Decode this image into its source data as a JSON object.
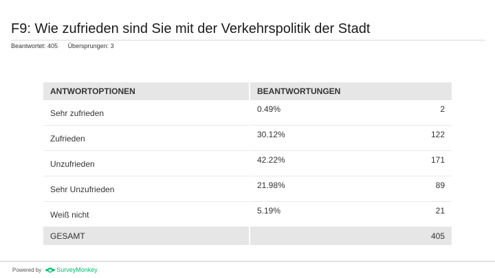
{
  "question": {
    "title": "F9: Wie zufrieden sind Sie mit der Verkehrspolitik der Stadt",
    "answered": "Beantwortet: 405",
    "skipped": "Übersprungen: 3"
  },
  "table": {
    "headers": {
      "options": "ANTWORTOPTIONEN",
      "responses": "BEANTWORTUNGEN"
    },
    "rows": [
      {
        "option": "Sehr zufrieden",
        "percent": "0.49%",
        "count": "2"
      },
      {
        "option": "Zufrieden",
        "percent": "30.12%",
        "count": "122"
      },
      {
        "option": "Unzufrieden",
        "percent": "42.22%",
        "count": "171"
      },
      {
        "option": "Sehr Unzufrieden",
        "percent": "21.98%",
        "count": "89"
      },
      {
        "option": "Weiß nicht",
        "percent": "5.19%",
        "count": "21"
      }
    ],
    "total": {
      "label": "GESAMT",
      "count": "405"
    }
  },
  "footer": {
    "powered_by": "Powered by",
    "brand": "SurveyMonkey"
  },
  "colors": {
    "brand": "#00bf6f",
    "header_bg": "#e6e6e6"
  },
  "icons": {
    "brand_logo": "surveymonkey-logo-icon"
  }
}
